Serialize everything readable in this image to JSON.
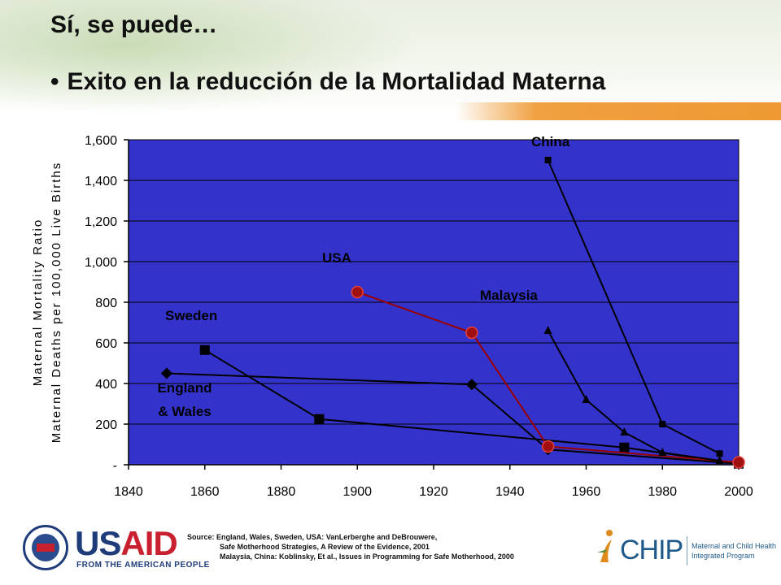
{
  "title": "Sí, se puede…",
  "bullet": "Exito en la reducción de la Mortalidad Materna",
  "chart_data": {
    "type": "line",
    "ylabel_line1": "Maternal Mortality Ratio",
    "ylabel_line2": "Maternal Deaths per 100,000 Live Births",
    "xlim": [
      1840,
      2000
    ],
    "ylim": [
      0,
      1600
    ],
    "x_ticks": [
      "1840",
      "1860",
      "1880",
      "1900",
      "1920",
      "1940",
      "1960",
      "1980",
      "2000"
    ],
    "y_ticks": [
      "-",
      "200",
      "400",
      "600",
      "800",
      "1,000",
      "1,200",
      "1,400",
      "1,600"
    ],
    "grid": true,
    "plot_background": "#3333cc",
    "series": [
      {
        "name": "England & Wales",
        "marker": "diamond",
        "color": "#000000",
        "points": [
          [
            1850,
            450
          ],
          [
            1930,
            395
          ],
          [
            1950,
            75
          ],
          [
            2000,
            5
          ]
        ]
      },
      {
        "name": "Sweden",
        "marker": "square",
        "color": "#000000",
        "points": [
          [
            1860,
            565
          ],
          [
            1890,
            225
          ],
          [
            1970,
            85
          ],
          [
            2000,
            5
          ]
        ]
      },
      {
        "name": "USA",
        "marker": "circle",
        "color": "#990000",
        "points": [
          [
            1900,
            850
          ],
          [
            1930,
            650
          ],
          [
            1950,
            90
          ],
          [
            2000,
            12
          ]
        ]
      },
      {
        "name": "Malaysia",
        "marker": "triangle",
        "color": "#000000",
        "points": [
          [
            1950,
            660
          ],
          [
            1960,
            320
          ],
          [
            1970,
            160
          ],
          [
            1980,
            60
          ],
          [
            1995,
            20
          ]
        ]
      },
      {
        "name": "China",
        "marker": "smallsquare",
        "color": "#000000",
        "points": [
          [
            1950,
            1500
          ],
          [
            1980,
            200
          ],
          [
            1995,
            55
          ]
        ]
      }
    ],
    "annotations": [
      {
        "text": "China",
        "series": "China"
      },
      {
        "text": "USA",
        "series": "USA"
      },
      {
        "text": "Malaysia",
        "series": "Malaysia"
      },
      {
        "text": "Sweden",
        "series": "Sweden"
      },
      {
        "text": "England",
        "series": "England & Wales"
      },
      {
        "text": "& Wales",
        "series": "England & Wales"
      }
    ]
  },
  "source": {
    "line1": "Source:  England, Wales, Sweden, USA: VanLerberghe and DeBrouwere,",
    "line2": "Safe Motherhood Strategies, A Review of the Evidence, 2001",
    "line3": "Malaysia, China: Koblinsky, Et al., Issues in Programming for Safe Motherhood, 2000"
  },
  "logos": {
    "usaid_u": "US",
    "usaid_a": "AID",
    "usaid_tag": "FROM THE AMERICAN PEOPLE",
    "chip_word": "CHIP",
    "chip_desc_1": "Maternal and Child Health",
    "chip_desc_2": "Integrated Program"
  }
}
